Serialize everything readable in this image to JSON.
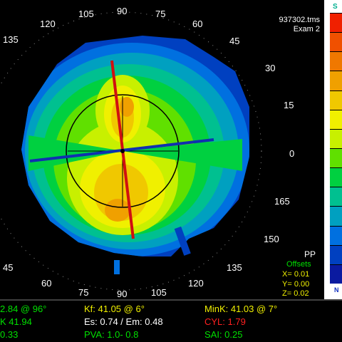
{
  "file": {
    "name": "937302.tms",
    "exam": "Exam 2"
  },
  "scale": {
    "top_label": "S",
    "bottom_label": "N",
    "colors": [
      "#f02000",
      "#f05000",
      "#f07800",
      "#f0a000",
      "#f0c800",
      "#f0f000",
      "#c8f000",
      "#60e000",
      "#00d040",
      "#00c090",
      "#00a0c0",
      "#0070e0",
      "#0040c0",
      "#0a1aa0"
    ]
  },
  "angles": [
    "135",
    "120",
    "105",
    "90",
    "75",
    "60",
    "45",
    "30",
    "15",
    "0",
    "165",
    "150",
    "135",
    "120",
    "105",
    "90",
    "75",
    "60",
    "45"
  ],
  "overlay": {
    "pp_label": "PP",
    "offsets_label": "Offsets",
    "x": "X=  0.01",
    "y": "Y=  0.00",
    "z": "Z=  0.02"
  },
  "stats": {
    "r1c1": "2.84 @ 96°",
    "r1c2": "Kf: 41.05 @  6°",
    "r1c3": "MinK: 41.03 @  7°",
    "r2c1": "K 41.94",
    "r2c2": "Es: 0.74 / Em: 0.48",
    "r2c3": "CYL:  1.79",
    "r3c1": "0.33",
    "r3c2": "PVA:  1.0-  0.8",
    "r3c3": "SAI:  0.25"
  },
  "colors": {
    "green": "#00e000",
    "yellow": "#f0f000",
    "red": "#ff2020",
    "white": "#ffffff"
  }
}
